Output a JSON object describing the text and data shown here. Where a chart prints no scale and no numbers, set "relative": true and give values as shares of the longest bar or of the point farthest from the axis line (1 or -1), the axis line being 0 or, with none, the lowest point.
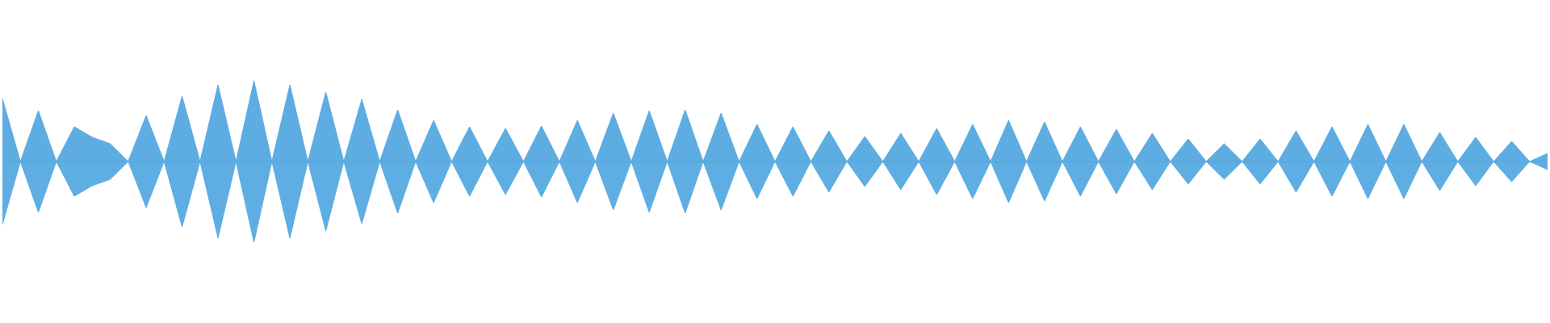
{
  "chart_data": {
    "type": "area",
    "relative": true,
    "marker": "none",
    "ref_lines": [
      {
        "axis": "y",
        "value": 0
      }
    ],
    "categories": [
      null,
      null,
      null,
      null,
      null,
      null,
      null,
      null,
      null,
      null,
      null,
      null,
      null,
      null,
      null,
      null,
      null,
      null,
      null,
      null,
      null,
      null,
      null,
      null,
      null,
      null,
      null,
      null,
      null,
      null,
      null,
      null,
      null,
      null,
      null,
      null,
      null,
      null,
      null,
      null,
      null,
      null,
      null,
      null,
      null,
      null,
      null,
      null,
      null,
      null,
      null,
      null,
      null,
      null,
      null,
      null,
      null,
      null,
      null,
      null,
      null,
      null,
      null,
      null,
      null,
      null,
      null,
      null,
      null,
      null,
      null,
      null,
      null,
      null,
      null,
      null,
      null,
      null,
      null,
      null,
      null,
      null,
      null,
      null,
      null,
      null,
      null
    ],
    "series": [
      {
        "color": "#5dade2",
        "values": [
          0.78,
          0,
          0.63,
          0,
          0.43,
          0.3,
          0.22,
          0,
          0.57,
          0,
          0.81,
          0,
          0.95,
          0,
          1,
          0,
          0.95,
          0,
          0.86,
          0,
          0.77,
          0,
          0.64,
          0,
          0.51,
          0,
          0.43,
          0,
          0.41,
          0,
          0.44,
          0,
          0.51,
          0,
          0.6,
          0,
          0.63,
          0,
          0.64,
          0,
          0.6,
          0,
          0.46,
          0,
          0.43,
          0,
          0.38,
          0,
          0.31,
          0,
          0.35,
          0,
          0.41,
          0,
          0.46,
          0,
          0.51,
          0,
          0.49,
          0,
          0.43,
          0,
          0.4,
          0,
          0.35,
          0,
          0.28,
          0,
          0.22,
          0,
          0.28,
          0,
          0.38,
          0,
          0.43,
          0,
          0.46,
          0,
          0.46,
          0,
          0.36,
          0,
          0.3,
          0,
          0.25,
          0,
          0.1
        ]
      },
      {
        "color": "#5eaee3",
        "values": [
          -0.78,
          0,
          -0.63,
          0,
          -0.43,
          -0.3,
          -0.22,
          0,
          -0.57,
          0,
          -0.81,
          0,
          -0.95,
          0,
          -1,
          0,
          -0.95,
          0,
          -0.86,
          0,
          -0.77,
          0,
          -0.64,
          0,
          -0.51,
          0,
          -0.43,
          0,
          -0.41,
          0,
          -0.44,
          0,
          -0.51,
          0,
          -0.6,
          0,
          -0.63,
          0,
          -0.64,
          0,
          -0.6,
          0,
          -0.46,
          0,
          -0.43,
          0,
          -0.38,
          0,
          -0.31,
          0,
          -0.35,
          0,
          -0.41,
          0,
          -0.46,
          0,
          -0.51,
          0,
          -0.49,
          0,
          -0.43,
          0,
          -0.4,
          0,
          -0.35,
          0,
          -0.28,
          0,
          -0.22,
          0,
          -0.28,
          0,
          -0.38,
          0,
          -0.43,
          0,
          -0.46,
          0,
          -0.46,
          0,
          -0.36,
          0,
          -0.3,
          0,
          -0.25,
          0,
          -0.1
        ]
      }
    ]
  }
}
